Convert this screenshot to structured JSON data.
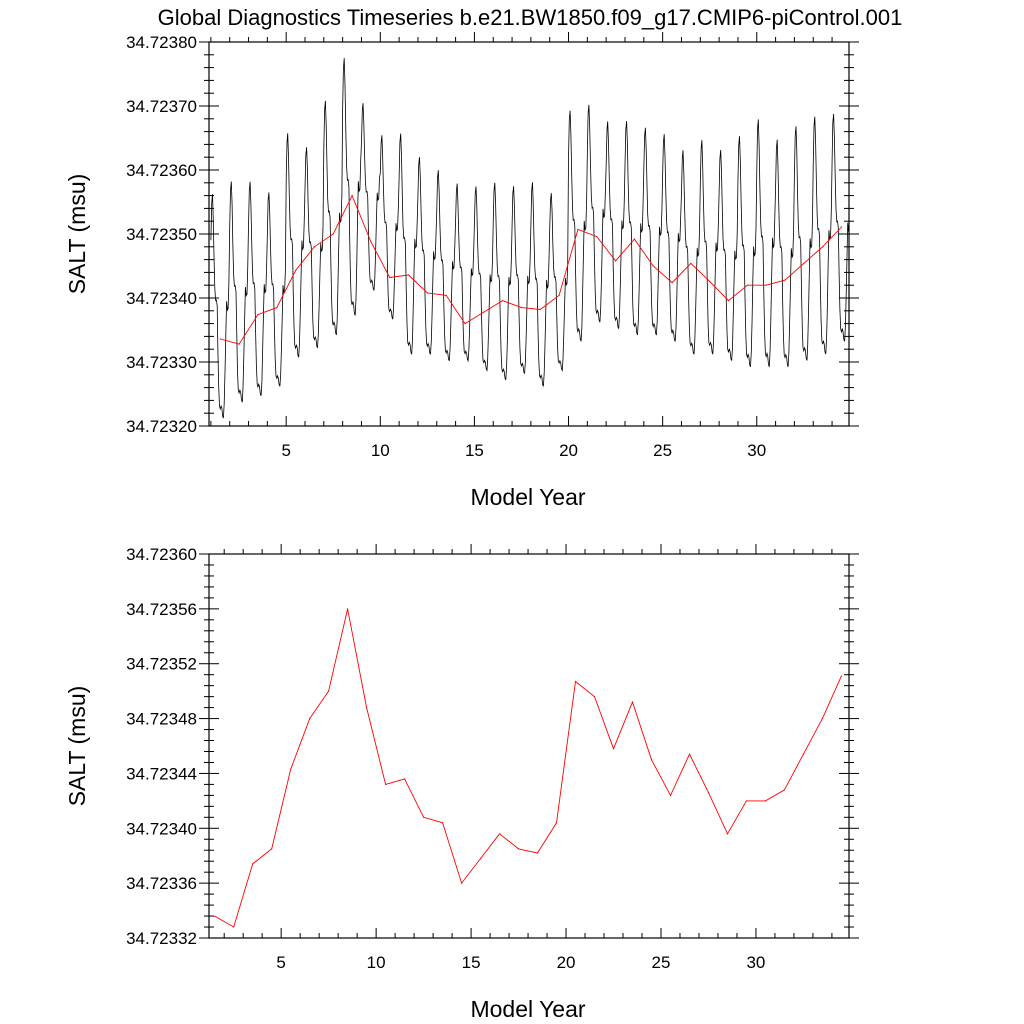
{
  "title": "Global Diagnostics Timeseries b.e21.BW1850.f09_g17.CMIP6-piControl.001",
  "chart_data": [
    {
      "type": "line",
      "xlabel": "Model Year",
      "ylabel": "SALT (msu)",
      "xlim": [
        0.9,
        34.9
      ],
      "ylim": [
        34.7232,
        34.7238
      ],
      "xticks": [
        5,
        10,
        15,
        20,
        25,
        30
      ],
      "yticks": [
        34.7232,
        34.7233,
        34.7234,
        34.7235,
        34.7236,
        34.7237,
        34.7238
      ],
      "ytick_labels": [
        "34.72320",
        "34.72330",
        "34.72340",
        "34.72350",
        "34.72360",
        "34.72370",
        "34.72380"
      ],
      "monthly_peaks": [
        34.723545,
        34.723565,
        34.723565,
        34.72355,
        34.72364,
        34.72362,
        34.72369,
        34.723755,
        34.72369,
        34.72364,
        34.72364,
        34.723605,
        34.723585,
        34.723565,
        34.72356,
        34.723565,
        34.72356,
        34.723565,
        34.72355,
        34.723675,
        34.723685,
        34.72366,
        34.72366,
        34.72365,
        34.72364,
        34.723615,
        34.72363,
        34.723615,
        34.723635,
        34.72366,
        34.72363,
        34.72365,
        34.723665,
        34.72367,
        34.723705
      ],
      "monthly_troughs": [
        34.72321,
        34.723235,
        34.723245,
        34.72326,
        34.723305,
        34.72332,
        34.72334,
        34.72337,
        34.72341,
        34.723365,
        34.72331,
        34.72331,
        34.7233,
        34.7233,
        34.723285,
        34.72327,
        34.72328,
        34.72326,
        34.723285,
        34.72333,
        34.72336,
        34.72335,
        34.72334,
        34.72334,
        34.72333,
        34.72331,
        34.72331,
        34.7233,
        34.72329,
        34.72329,
        34.72329,
        34.7233,
        34.72331,
        34.72333,
        34.72341
      ],
      "series": [
        {
          "name": "annual mean",
          "color": "#ff0000",
          "x": [
            1.5,
            2.5,
            3.5,
            4.5,
            5.5,
            6.5,
            7.5,
            8.5,
            9.5,
            10.5,
            11.5,
            12.5,
            13.5,
            14.5,
            15.5,
            16.5,
            17.5,
            18.5,
            19.5,
            20.5,
            21.5,
            22.5,
            23.5,
            24.5,
            25.5,
            26.5,
            27.5,
            28.5,
            29.5,
            30.5,
            31.5,
            32.5,
            33.5,
            34.5
          ],
          "values": [
            34.723336,
            34.723328,
            34.723374,
            34.723385,
            34.723443,
            34.72348,
            34.7235,
            34.72356,
            34.723488,
            34.723432,
            34.723436,
            34.723408,
            34.723404,
            34.72336,
            34.723378,
            34.723396,
            34.723385,
            34.723382,
            34.723404,
            34.723507,
            34.723496,
            34.723458,
            34.723492,
            34.72345,
            34.723424,
            34.723454,
            34.723426,
            34.723396,
            34.72342,
            34.72342,
            34.723428,
            34.723454,
            34.72348,
            34.723511
          ]
        },
        {
          "name": "monthly",
          "color": "#000000"
        }
      ]
    },
    {
      "type": "line",
      "xlabel": "Model Year",
      "ylabel": "SALT (msu)",
      "xlim": [
        1.2,
        34.9
      ],
      "ylim": [
        34.72332,
        34.7236
      ],
      "xticks": [
        5,
        10,
        15,
        20,
        25,
        30
      ],
      "yticks": [
        34.72332,
        34.72336,
        34.7234,
        34.72344,
        34.72348,
        34.72352,
        34.72356,
        34.7236
      ],
      "ytick_labels": [
        "34.72332",
        "34.72336",
        "34.72340",
        "34.72344",
        "34.72348",
        "34.72352",
        "34.72356",
        "34.72360"
      ],
      "series": [
        {
          "name": "annual mean",
          "color": "#ff0000",
          "x": [
            1.5,
            2.5,
            3.5,
            4.5,
            5.5,
            6.5,
            7.5,
            8.5,
            9.5,
            10.5,
            11.5,
            12.5,
            13.5,
            14.5,
            15.5,
            16.5,
            17.5,
            18.5,
            19.5,
            20.5,
            21.5,
            22.5,
            23.5,
            24.5,
            25.5,
            26.5,
            27.5,
            28.5,
            29.5,
            30.5,
            31.5,
            32.5,
            33.5,
            34.5
          ],
          "values": [
            34.723336,
            34.723328,
            34.723374,
            34.723385,
            34.723443,
            34.72348,
            34.7235,
            34.72356,
            34.723488,
            34.723432,
            34.723436,
            34.723408,
            34.723404,
            34.72336,
            34.723378,
            34.723396,
            34.723385,
            34.723382,
            34.723404,
            34.723507,
            34.723496,
            34.723458,
            34.723492,
            34.72345,
            34.723424,
            34.723454,
            34.723426,
            34.723396,
            34.72342,
            34.72342,
            34.723428,
            34.723454,
            34.72348,
            34.723511
          ]
        }
      ]
    }
  ]
}
